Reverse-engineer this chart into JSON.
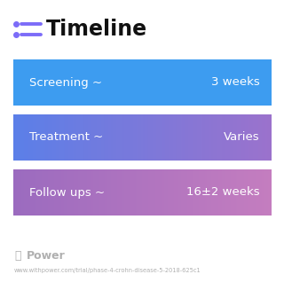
{
  "title": "Timeline",
  "background_color": "#ffffff",
  "icon_dot_color": "#7c6cf8",
  "icon_line_color": "#7c6cf8",
  "title_fontsize": 17,
  "rows": [
    {
      "left_label": "Screening ~",
      "right_label": "3 weeks",
      "color_left": "#3d9cf0",
      "color_right": "#3d9cf0"
    },
    {
      "left_label": "Treatment ~",
      "right_label": "Varies",
      "color_left": "#5b7fe8",
      "color_right": "#9b72cc"
    },
    {
      "left_label": "Follow ups ~",
      "right_label": "16±2 weeks",
      "color_left": "#9b6bbf",
      "color_right": "#c47dbf"
    }
  ],
  "footer_logo_text": "Power",
  "footer_url": "www.withpower.com/trial/phase-4-crohn-disease-5-2018-625c1",
  "footer_color": "#b0b0b0",
  "text_color": "#ffffff",
  "label_fontsize": 9.5,
  "value_fontsize": 9.5
}
